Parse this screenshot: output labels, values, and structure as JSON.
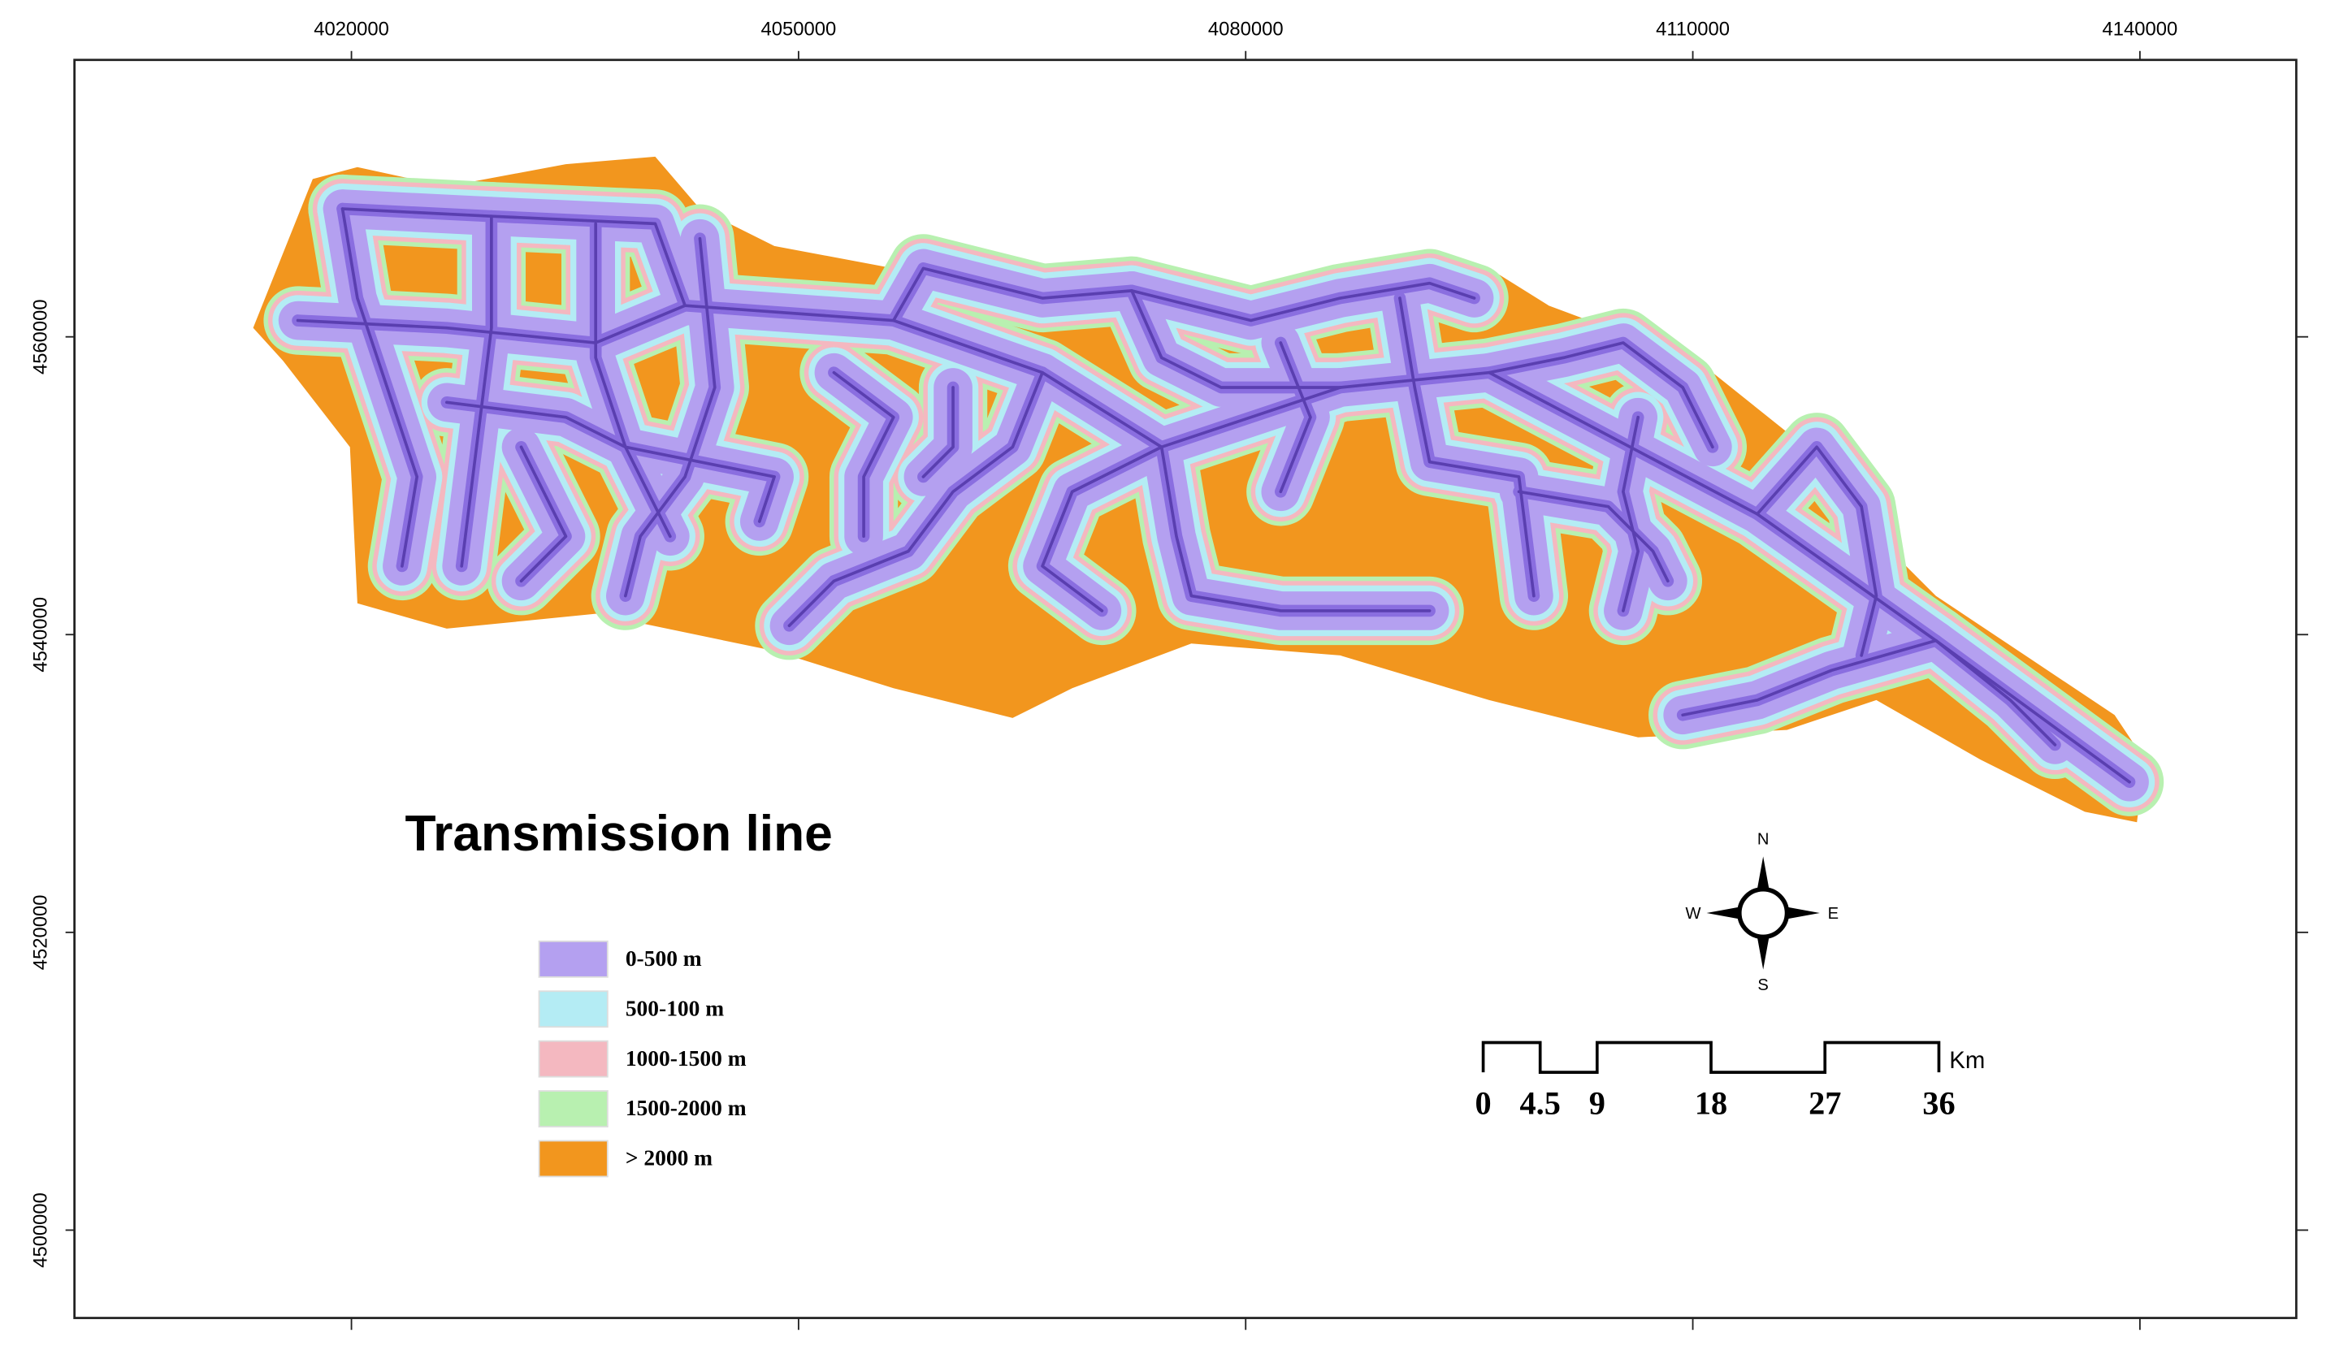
{
  "map_title": "Transmission line",
  "x_axis": {
    "ticks": [
      4020000,
      4050000,
      4080000,
      4110000,
      4140000
    ]
  },
  "y_axis": {
    "ticks": [
      4560000,
      4540000,
      4520000,
      4500000
    ]
  },
  "legend": [
    {
      "label": "0-500 m",
      "color": "#b4a0f0"
    },
    {
      "label": "500-100 m",
      "color": "#b4ecf4"
    },
    {
      "label": "1000-1500 m",
      "color": "#f4b8c0"
    },
    {
      "label": "1500-2000 m",
      "color": "#b8f0b0"
    },
    {
      "label": "> 2000 m",
      "color": "#f2961e"
    }
  ],
  "compass": {
    "north": "N",
    "south": "S",
    "east": "E",
    "west": "W"
  },
  "scale_bar": {
    "stops": [
      0,
      4.5,
      9,
      18,
      27,
      36
    ],
    "unit": "Km"
  }
}
